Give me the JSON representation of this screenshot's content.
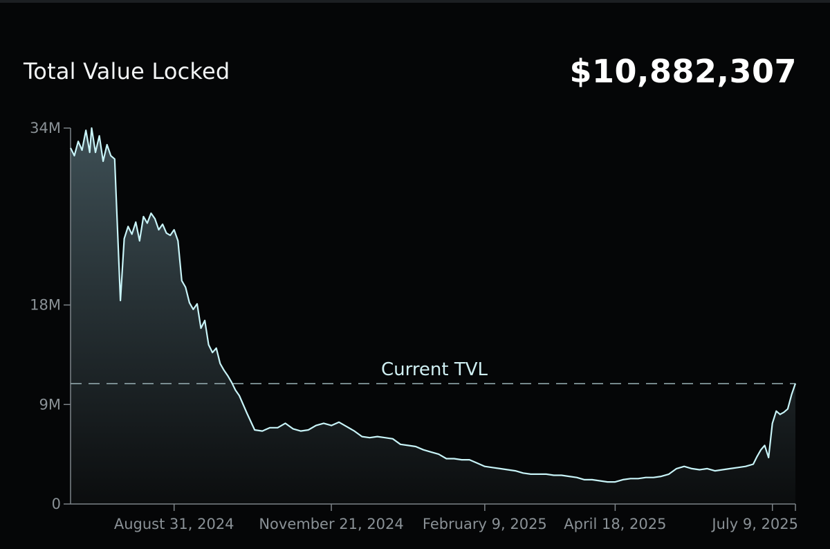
{
  "header": {
    "title": "Total Value Locked",
    "value": "$10,882,307"
  },
  "colors": {
    "background": "#050607",
    "line": "#c8f4f8",
    "area_top": "#3e4f55",
    "area_bottom": "#0b0d0e",
    "reference_line": "#8fa6aa",
    "axis": "#7d8489",
    "tick_text": "#8a9196"
  },
  "chart_data": {
    "type": "area",
    "title": "Total Value Locked",
    "xlabel": "",
    "ylabel": "",
    "ylim": [
      0,
      34000000
    ],
    "xlim": [
      "2024-07-08",
      "2025-07-21"
    ],
    "y_ticks": [
      {
        "value": 0,
        "label": "0"
      },
      {
        "value": 9000000,
        "label": "9M"
      },
      {
        "value": 18000000,
        "label": "18M"
      },
      {
        "value": 34000000,
        "label": "34M"
      }
    ],
    "x_ticks": [
      {
        "value": "2024-08-31",
        "label": "August 31, 2024"
      },
      {
        "value": "2024-11-21",
        "label": "November 21, 2024"
      },
      {
        "value": "2025-02-09",
        "label": "February 9, 2025"
      },
      {
        "value": "2025-04-18",
        "label": "April 18, 2025"
      },
      {
        "value": "2025-07-09",
        "label": "July 9, 2025"
      }
    ],
    "reference_line": {
      "label": "Current TVL",
      "value": 10882307
    },
    "grid": false,
    "series": [
      {
        "x": [
          "2024-07-08",
          "2024-07-10",
          "2024-07-12",
          "2024-07-14",
          "2024-07-16",
          "2024-07-18",
          "2024-07-19",
          "2024-07-21",
          "2024-07-23",
          "2024-07-25",
          "2024-07-27",
          "2024-07-29",
          "2024-07-31",
          "2024-08-01",
          "2024-08-03",
          "2024-08-05",
          "2024-08-07",
          "2024-08-09",
          "2024-08-11",
          "2024-08-13",
          "2024-08-15",
          "2024-08-17",
          "2024-08-19",
          "2024-08-21",
          "2024-08-23",
          "2024-08-25",
          "2024-08-27",
          "2024-08-29",
          "2024-08-31",
          "2024-09-02",
          "2024-09-04",
          "2024-09-06",
          "2024-09-08",
          "2024-09-10",
          "2024-09-12",
          "2024-09-14",
          "2024-09-16",
          "2024-09-18",
          "2024-09-20",
          "2024-09-22",
          "2024-09-24",
          "2024-09-26",
          "2024-09-28",
          "2024-09-30",
          "2024-10-02",
          "2024-10-04",
          "2024-10-08",
          "2024-10-12",
          "2024-10-16",
          "2024-10-20",
          "2024-10-24",
          "2024-10-28",
          "2024-11-01",
          "2024-11-05",
          "2024-11-09",
          "2024-11-13",
          "2024-11-17",
          "2024-11-21",
          "2024-11-25",
          "2024-11-29",
          "2024-12-03",
          "2024-12-07",
          "2024-12-11",
          "2024-12-15",
          "2024-12-19",
          "2024-12-23",
          "2024-12-27",
          "2024-12-31",
          "2025-01-04",
          "2025-01-08",
          "2025-01-12",
          "2025-01-16",
          "2025-01-20",
          "2025-01-24",
          "2025-01-28",
          "2025-02-01",
          "2025-02-05",
          "2025-02-09",
          "2025-02-13",
          "2025-02-17",
          "2025-02-21",
          "2025-02-25",
          "2025-03-01",
          "2025-03-05",
          "2025-03-09",
          "2025-03-13",
          "2025-03-17",
          "2025-03-21",
          "2025-03-25",
          "2025-03-29",
          "2025-04-02",
          "2025-04-06",
          "2025-04-10",
          "2025-04-14",
          "2025-04-18",
          "2025-04-22",
          "2025-04-26",
          "2025-04-30",
          "2025-05-04",
          "2025-05-08",
          "2025-05-12",
          "2025-05-16",
          "2025-05-20",
          "2025-05-24",
          "2025-05-28",
          "2025-06-01",
          "2025-06-05",
          "2025-06-09",
          "2025-06-13",
          "2025-06-17",
          "2025-06-21",
          "2025-06-25",
          "2025-06-29",
          "2025-07-01",
          "2025-07-03",
          "2025-07-05",
          "2025-07-07",
          "2025-07-09",
          "2025-07-11",
          "2025-07-13",
          "2025-07-15",
          "2025-07-17",
          "2025-07-19",
          "2025-07-21"
        ],
        "y": [
          32200000,
          31500000,
          32800000,
          32000000,
          33800000,
          31800000,
          34000000,
          31800000,
          33300000,
          31000000,
          32500000,
          31500000,
          31200000,
          27000000,
          18400000,
          24000000,
          25100000,
          24400000,
          25500000,
          23800000,
          26000000,
          25400000,
          26300000,
          25800000,
          24800000,
          25300000,
          24500000,
          24300000,
          24800000,
          23800000,
          20200000,
          19600000,
          18200000,
          17600000,
          18100000,
          15900000,
          16600000,
          14400000,
          13700000,
          14100000,
          12700000,
          12100000,
          11600000,
          11000000,
          10300000,
          9800000,
          8200000,
          6700000,
          6600000,
          6900000,
          6900000,
          7300000,
          6800000,
          6600000,
          6700000,
          7100000,
          7300000,
          7100000,
          7400000,
          7000000,
          6600000,
          6100000,
          6000000,
          6100000,
          6000000,
          5900000,
          5400000,
          5300000,
          5200000,
          4900000,
          4700000,
          4500000,
          4100000,
          4100000,
          4000000,
          4000000,
          3700000,
          3400000,
          3300000,
          3200000,
          3100000,
          3000000,
          2800000,
          2700000,
          2700000,
          2700000,
          2600000,
          2600000,
          2500000,
          2400000,
          2200000,
          2200000,
          2100000,
          2000000,
          2000000,
          2200000,
          2300000,
          2300000,
          2400000,
          2400000,
          2500000,
          2700000,
          3200000,
          3400000,
          3200000,
          3100000,
          3200000,
          3000000,
          3100000,
          3200000,
          3300000,
          3400000,
          3600000,
          4300000,
          4900000,
          5300000,
          4200000,
          7300000,
          8400000,
          8100000,
          8300000,
          8600000,
          9900000,
          10900000
        ]
      }
    ]
  }
}
